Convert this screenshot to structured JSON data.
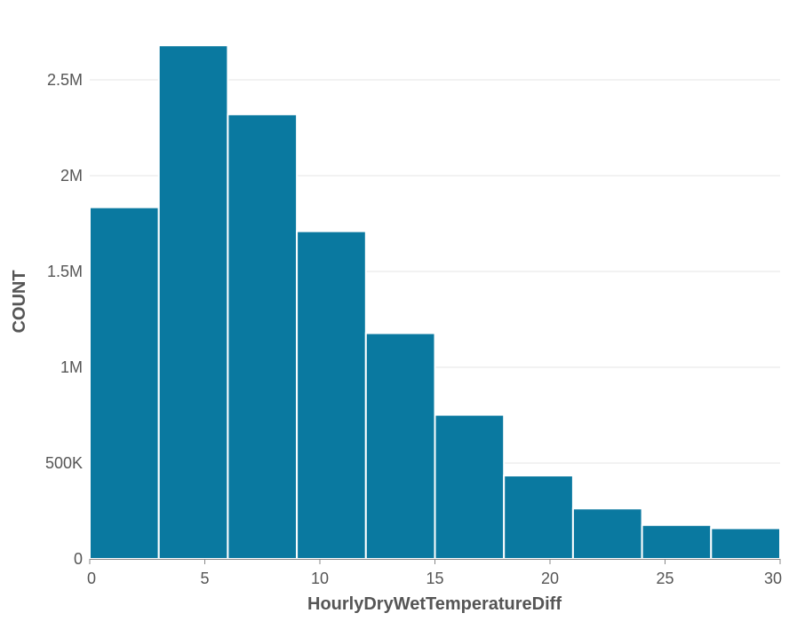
{
  "chart_data": {
    "type": "bar",
    "title": "",
    "xlabel": "HourlyDryWetTemperatureDiff",
    "ylabel": "COUNT",
    "bins": [
      {
        "x0": 0,
        "x1": 3,
        "value": 1835000
      },
      {
        "x0": 3,
        "x1": 6,
        "value": 2680000
      },
      {
        "x0": 6,
        "x1": 9,
        "value": 2320000
      },
      {
        "x0": 9,
        "x1": 12,
        "value": 1710000
      },
      {
        "x0": 12,
        "x1": 15,
        "value": 1178000
      },
      {
        "x0": 15,
        "x1": 18,
        "value": 752000
      },
      {
        "x0": 18,
        "x1": 21,
        "value": 435000
      },
      {
        "x0": 21,
        "x1": 24,
        "value": 263000
      },
      {
        "x0": 24,
        "x1": 27,
        "value": 177000
      },
      {
        "x0": 27,
        "x1": 30,
        "value": 160000
      }
    ],
    "xlim": [
      0,
      30
    ],
    "ylim": [
      0,
      2800000
    ],
    "x_ticks": [
      0,
      5,
      10,
      15,
      20,
      25,
      30
    ],
    "x_tick_labels": [
      "0",
      "5",
      "10",
      "15",
      "20",
      "25",
      "30"
    ],
    "y_ticks": [
      0,
      500000,
      1000000,
      1500000,
      2000000,
      2500000
    ],
    "y_tick_labels": [
      "0",
      "500K",
      "1M",
      "1.5M",
      "2M",
      "2.5M"
    ],
    "grid": true,
    "bar_color": "#0a79a0"
  }
}
